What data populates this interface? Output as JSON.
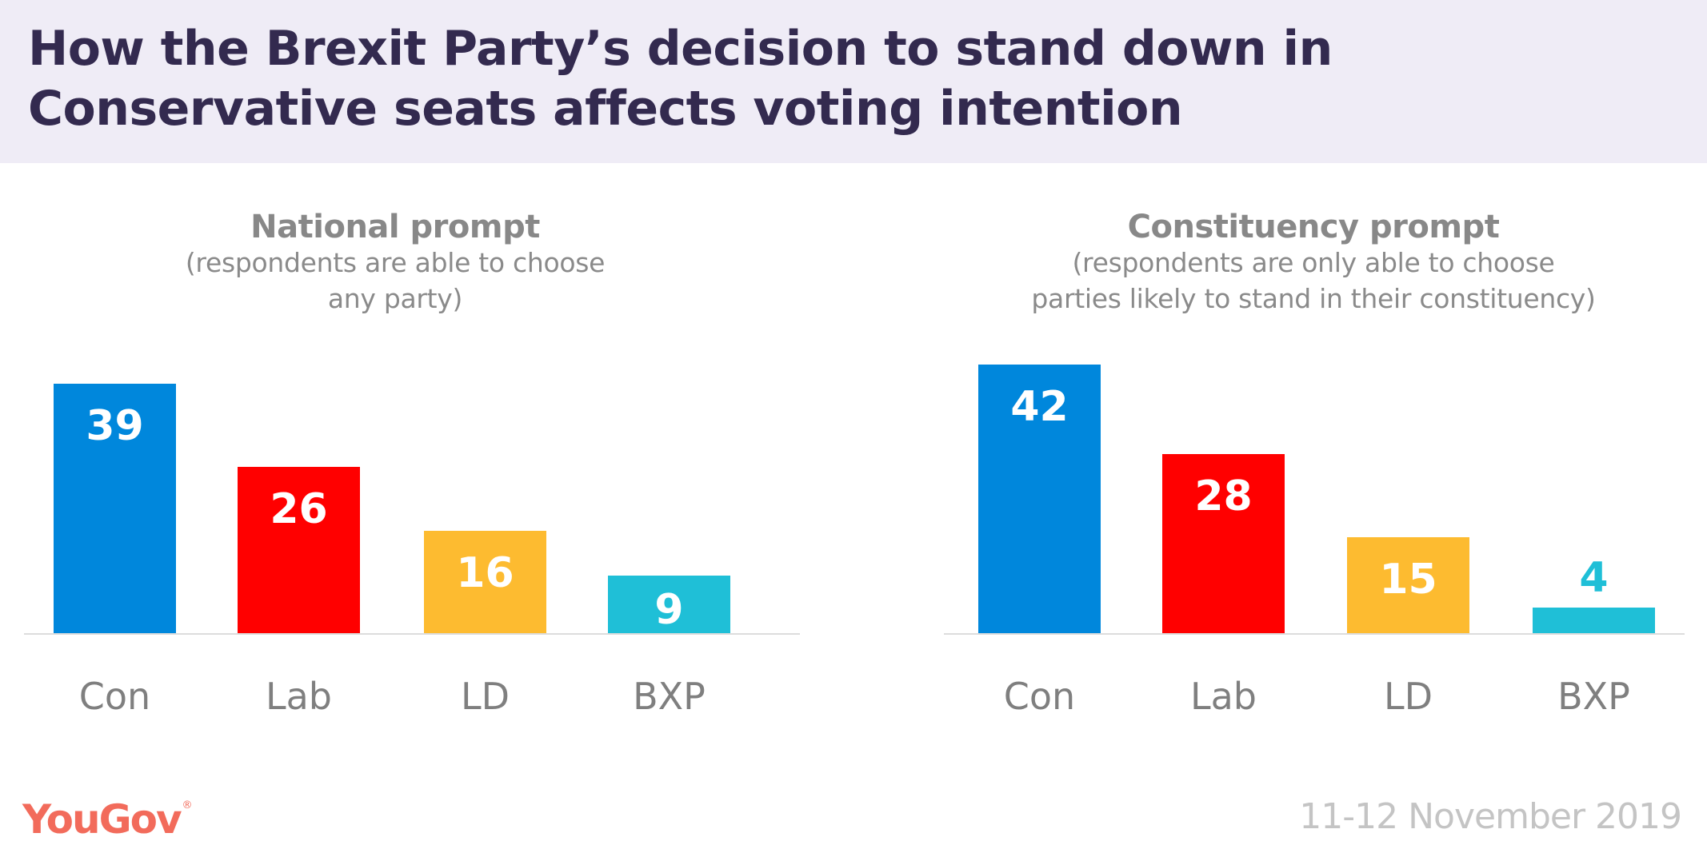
{
  "header": {
    "title": "How the Brexit Party’s decision to stand down in Conservative seats affects voting intention"
  },
  "colors": {
    "header_bg": "#efecf6",
    "title": "#332a4f",
    "con": "#0087dc",
    "lab": "#ff0000",
    "ld": "#fdbb30",
    "bxp": "#1fbfd7",
    "axis": "#dcdcdc",
    "category_text": "#7f7f7f",
    "logo": "#f26b5b"
  },
  "chart_data": [
    {
      "type": "bar",
      "title": "National prompt",
      "subtitle": "(respondents are able to choose any party)",
      "subtitle_lines": [
        "(respondents are able to choose",
        "any party)"
      ],
      "categories": [
        "Con",
        "Lab",
        "LD",
        "BXP"
      ],
      "values": [
        39,
        26,
        16,
        9
      ],
      "data_labels": [
        "39",
        "26",
        "16",
        "9"
      ],
      "bar_colors": [
        "#0087dc",
        "#ff0000",
        "#fdbb30",
        "#1fbfd7"
      ],
      "xlabel": "",
      "ylabel": "",
      "ylim": [
        0,
        45
      ],
      "grid": false,
      "legend": "none"
    },
    {
      "type": "bar",
      "title": "Constituency prompt",
      "subtitle": "(respondents are only able to choose parties likely to stand in their constituency)",
      "subtitle_lines": [
        "(respondents are only able to choose",
        "parties likely to stand in their constituency)"
      ],
      "categories": [
        "Con",
        "Lab",
        "LD",
        "BXP"
      ],
      "values": [
        42,
        28,
        15,
        4
      ],
      "data_labels": [
        "42",
        "28",
        "15",
        "4"
      ],
      "bar_colors": [
        "#0087dc",
        "#ff0000",
        "#fdbb30",
        "#1fbfd7"
      ],
      "xlabel": "",
      "ylabel": "",
      "ylim": [
        0,
        45
      ],
      "grid": false,
      "legend": "none"
    }
  ],
  "footer": {
    "logo_text": "YouGov",
    "logo_mark": "®",
    "date": "11-12 November 2019"
  }
}
